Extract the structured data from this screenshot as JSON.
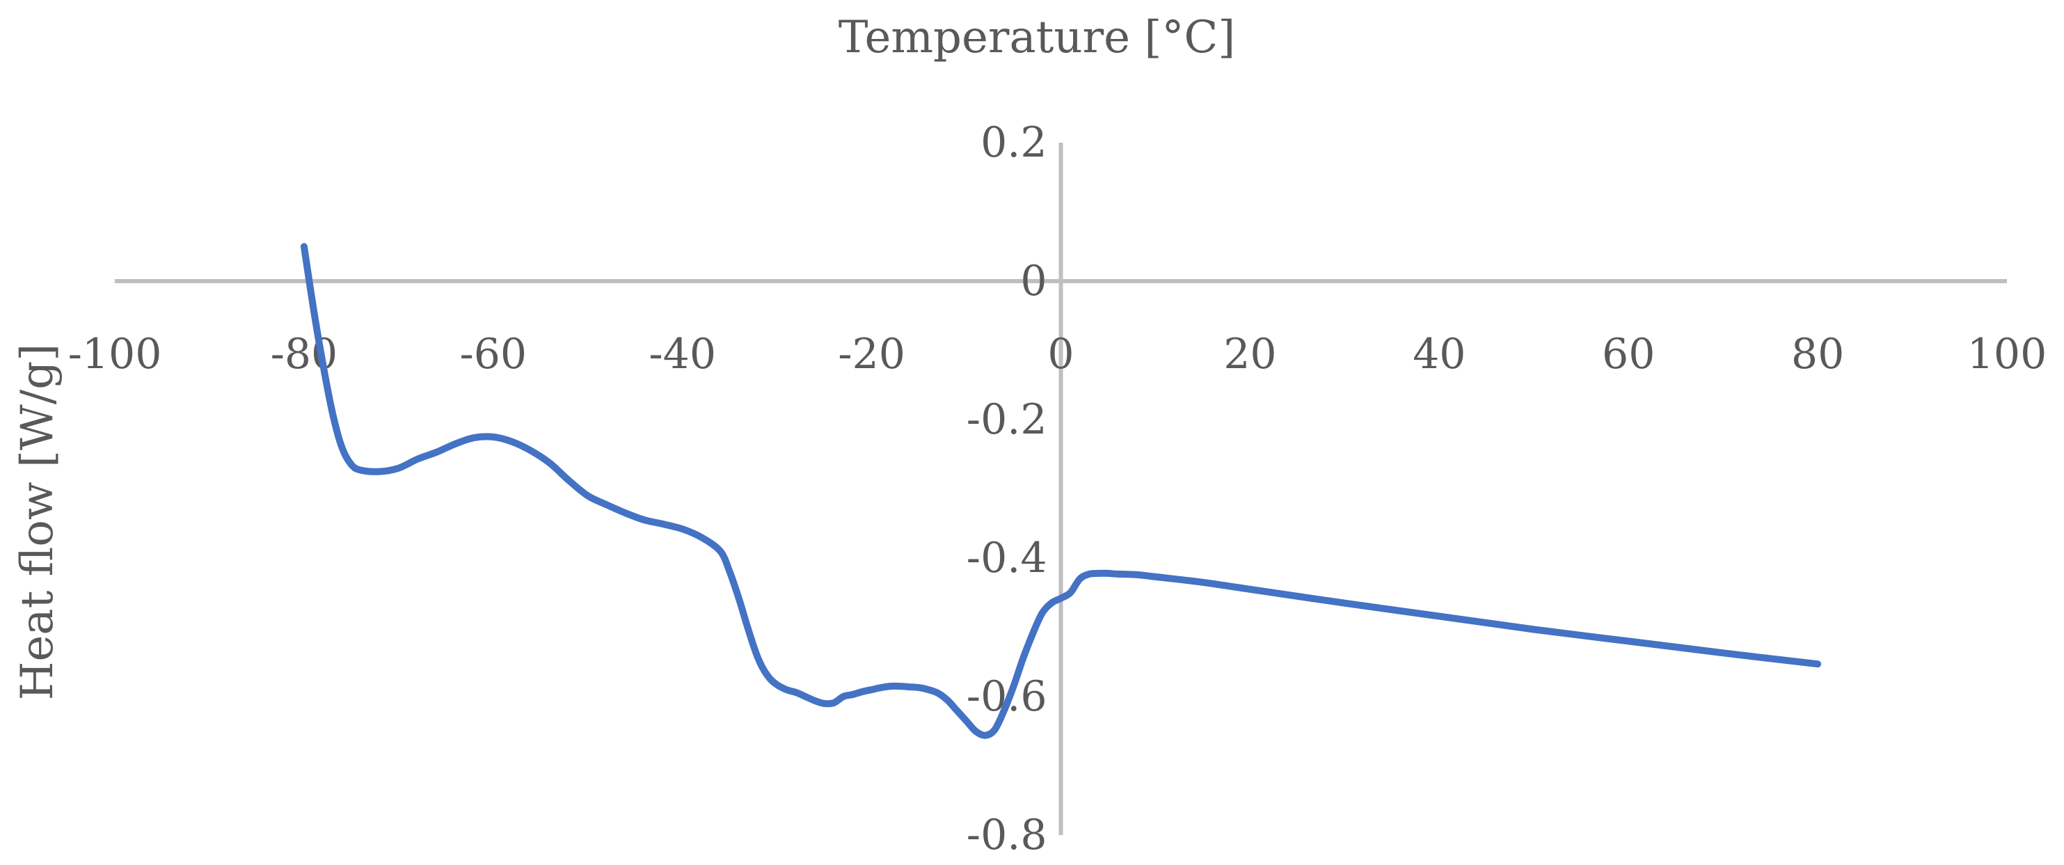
{
  "chart_data": {
    "type": "line",
    "title": "",
    "xlabel": "Temperature [°C]",
    "ylabel": "Heat flow [W/g]",
    "xlim": [
      -100,
      100
    ],
    "ylim": [
      -0.8,
      0.2
    ],
    "x_ticks": [
      -100,
      -80,
      -60,
      -40,
      -20,
      0,
      20,
      40,
      60,
      80,
      100
    ],
    "y_ticks": [
      0.2,
      0,
      -0.2,
      -0.4,
      -0.6,
      -0.8
    ],
    "x_tick_labels": [
      "-100",
      "-80",
      "-60",
      "-40",
      "-20",
      "0",
      "20",
      "40",
      "60",
      "80",
      "100"
    ],
    "y_tick_labels": [
      "0.2",
      "0",
      "-0.2",
      "-0.4",
      "-0.6",
      "-0.8"
    ],
    "axes_cross_at_zero": true,
    "grid": false,
    "legend": false,
    "series_color": "#4472c4",
    "axis_color": "#bfbfbf",
    "text_color": "#595959",
    "series": [
      {
        "x": [
          -80,
          -79,
          -78,
          -77,
          -76,
          -75,
          -74,
          -72,
          -70,
          -68,
          -66,
          -64,
          -62,
          -60,
          -58,
          -56,
          -54,
          -52,
          -50,
          -48,
          -46,
          -44,
          -42,
          -40,
          -38,
          -36,
          -35,
          -34,
          -33,
          -32,
          -31,
          -30,
          -29,
          -28,
          -27,
          -26,
          -25,
          -24,
          -23,
          -22,
          -21,
          -20,
          -19,
          -18,
          -17,
          -16,
          -15,
          -14,
          -13,
          -12,
          -11,
          -10,
          -9,
          -8,
          -7,
          -6,
          -5,
          -4,
          -3,
          -2,
          -1,
          0,
          1,
          2,
          3,
          4,
          5,
          6,
          8,
          10,
          15,
          20,
          30,
          40,
          50,
          60,
          70,
          80
        ],
        "y": [
          0.05,
          -0.04,
          -0.12,
          -0.19,
          -0.24,
          -0.265,
          -0.273,
          -0.275,
          -0.27,
          -0.257,
          -0.247,
          -0.235,
          -0.226,
          -0.225,
          -0.232,
          -0.245,
          -0.263,
          -0.288,
          -0.31,
          -0.323,
          -0.335,
          -0.345,
          -0.351,
          -0.358,
          -0.37,
          -0.39,
          -0.42,
          -0.46,
          -0.505,
          -0.545,
          -0.57,
          -0.583,
          -0.59,
          -0.594,
          -0.6,
          -0.606,
          -0.61,
          -0.609,
          -0.6,
          -0.597,
          -0.593,
          -0.59,
          -0.587,
          -0.585,
          -0.585,
          -0.586,
          -0.587,
          -0.59,
          -0.595,
          -0.605,
          -0.62,
          -0.635,
          -0.65,
          -0.656,
          -0.648,
          -0.62,
          -0.585,
          -0.545,
          -0.51,
          -0.48,
          -0.465,
          -0.458,
          -0.45,
          -0.43,
          -0.423,
          -0.422,
          -0.422,
          -0.423,
          -0.424,
          -0.427,
          -0.435,
          -0.445,
          -0.465,
          -0.484,
          -0.503,
          -0.52,
          -0.537,
          -0.553
        ]
      }
    ]
  }
}
